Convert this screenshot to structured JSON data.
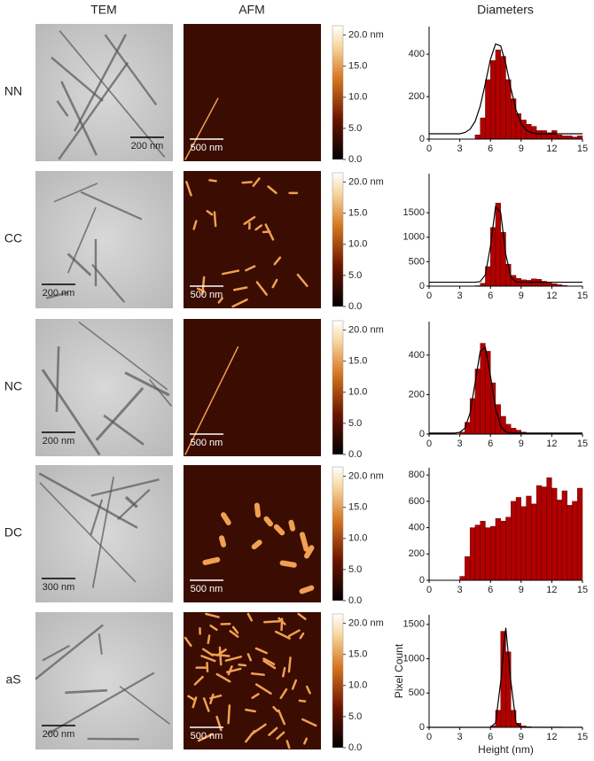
{
  "columns": [
    "TEM",
    "AFM",
    "Diameters"
  ],
  "rows": [
    {
      "label": "NN",
      "tem_scale": "200 nm",
      "afm_scale": "500 nm"
    },
    {
      "label": "CC",
      "tem_scale": "200 nm",
      "afm_scale": "500 nm"
    },
    {
      "label": "NC",
      "tem_scale": "200 nm",
      "afm_scale": "500 nm"
    },
    {
      "label": "DC",
      "tem_scale": "300 nm",
      "afm_scale": "500 nm"
    },
    {
      "label": "aS",
      "tem_scale": "200 nm",
      "afm_scale": "500 nm"
    }
  ],
  "colorbar": {
    "lim": [
      0,
      21.5
    ],
    "ticks": [
      {
        "value": 20,
        "label": "20.0 nm"
      },
      {
        "value": 15,
        "label": "15.0"
      },
      {
        "value": 10,
        "label": "10.0"
      },
      {
        "value": 5,
        "label": "5.0"
      },
      {
        "value": 0,
        "label": "0.0"
      }
    ]
  },
  "chart_data": [
    {
      "type": "histogram",
      "color": "#b00000",
      "bins": [
        0,
        0.5,
        1,
        1.5,
        2,
        2.5,
        3,
        3.5,
        4,
        4.5,
        5,
        5.5,
        6,
        6.5,
        7,
        7.5,
        8,
        8.5,
        9,
        9.5,
        10,
        10.5,
        11,
        11.5,
        12,
        12.5,
        13,
        13.5,
        14,
        14.5,
        15
      ],
      "counts": [
        0,
        0,
        0,
        0,
        0,
        0,
        0,
        0,
        0,
        20,
        100,
        280,
        370,
        420,
        390,
        280,
        190,
        120,
        90,
        70,
        60,
        40,
        40,
        30,
        40,
        20,
        15,
        15,
        10,
        15
      ],
      "fit": {
        "color": "#000000",
        "x": [
          0,
          0.5,
          1,
          1.5,
          2,
          2.5,
          3,
          3.5,
          4,
          4.5,
          5,
          5.5,
          6,
          6.5,
          7,
          7.5,
          8,
          8.5,
          9,
          9.5,
          10,
          10.5,
          11,
          11.5,
          12,
          12.5,
          13,
          13.5,
          14,
          14.5,
          15
        ],
        "values": [
          25,
          25,
          25,
          25,
          25,
          25,
          25,
          31,
          46,
          83,
          155,
          262,
          376,
          448,
          439,
          355,
          239,
          138,
          73,
          42,
          30,
          25,
          25,
          25,
          25,
          25,
          25,
          25,
          25,
          25,
          25
        ]
      },
      "xlim": [
        0,
        15
      ],
      "xticks": [
        0,
        3,
        6,
        9,
        12,
        15
      ],
      "ylim": [
        0,
        530
      ],
      "yticks": [
        0,
        200,
        400
      ]
    },
    {
      "type": "histogram",
      "color": "#b00000",
      "bins": [
        0,
        0.5,
        1,
        1.5,
        2,
        2.5,
        3,
        3.5,
        4,
        4.5,
        5,
        5.5,
        6,
        6.5,
        7,
        7.5,
        8,
        8.5,
        9,
        9.5,
        10,
        10.5,
        11,
        11.5,
        12,
        12.5,
        13,
        13.5,
        14,
        14.5,
        15
      ],
      "counts": [
        0,
        0,
        0,
        0,
        0,
        0,
        0,
        0,
        0,
        10,
        60,
        400,
        1200,
        1700,
        1100,
        450,
        220,
        160,
        130,
        120,
        150,
        140,
        100,
        80,
        50,
        30,
        15,
        0,
        0,
        0
      ],
      "fit": {
        "color": "#000000",
        "x": [
          0,
          0.5,
          1,
          1.5,
          2,
          2.5,
          3,
          3.5,
          4,
          4.5,
          5,
          5.5,
          6,
          6.5,
          7,
          7.5,
          8,
          8.5,
          9,
          9.5,
          10,
          10.5,
          11,
          11.5,
          12,
          12.5,
          13,
          13.5,
          14,
          14.5,
          15
        ],
        "values": [
          80,
          80,
          80,
          80,
          80,
          80,
          80,
          80,
          80,
          80,
          94,
          232,
          814,
          1624,
          1502,
          652,
          181,
          88,
          80,
          80,
          80,
          80,
          80,
          80,
          80,
          80,
          80,
          80,
          80,
          80,
          80
        ]
      },
      "xlim": [
        0,
        15
      ],
      "xticks": [
        0,
        3,
        6,
        9,
        12,
        15
      ],
      "ylim": [
        0,
        2300
      ],
      "yticks": [
        0,
        500,
        1000,
        1500
      ]
    },
    {
      "type": "histogram",
      "color": "#b00000",
      "bins": [
        0,
        0.5,
        1,
        1.5,
        2,
        2.5,
        3,
        3.5,
        4,
        4.5,
        5,
        5.5,
        6,
        6.5,
        7,
        7.5,
        8,
        8.5,
        9,
        9.5,
        10,
        10.5,
        11,
        11.5,
        12,
        12.5,
        13,
        13.5,
        14,
        14.5,
        15
      ],
      "counts": [
        0,
        0,
        0,
        0,
        0,
        0,
        10,
        60,
        180,
        330,
        460,
        420,
        260,
        150,
        90,
        50,
        30,
        20,
        10,
        5,
        0,
        0,
        0,
        0,
        0,
        0,
        0,
        0,
        0,
        0
      ],
      "fit": {
        "color": "#000000",
        "x": [
          0,
          0.5,
          1,
          1.5,
          2,
          2.5,
          3,
          3.5,
          4,
          4.5,
          5,
          5.5,
          6,
          6.5,
          7,
          7.5,
          8,
          8.5,
          9,
          9.5,
          10,
          10.5,
          11,
          11.5,
          12,
          12.5,
          13,
          13.5,
          14,
          14.5,
          15
        ],
        "values": [
          5,
          5,
          5,
          5,
          5,
          5,
          9,
          30,
          105,
          260,
          420,
          439,
          296,
          130,
          40,
          11,
          5,
          5,
          5,
          5,
          5,
          5,
          5,
          5,
          5,
          5,
          5,
          5,
          5,
          5,
          5
        ]
      },
      "xlim": [
        0,
        15
      ],
      "xticks": [
        0,
        3,
        6,
        9,
        12,
        15
      ],
      "ylim": [
        0,
        570
      ],
      "yticks": [
        0,
        200,
        400
      ]
    },
    {
      "type": "histogram",
      "color": "#b00000",
      "bins": [
        0,
        0.5,
        1,
        1.5,
        2,
        2.5,
        3,
        3.5,
        4,
        4.5,
        5,
        5.5,
        6,
        6.5,
        7,
        7.5,
        8,
        8.5,
        9,
        9.5,
        10,
        10.5,
        11,
        11.5,
        12,
        12.5,
        13,
        13.5,
        14,
        14.5,
        15
      ],
      "counts": [
        0,
        0,
        0,
        0,
        0,
        0,
        30,
        180,
        400,
        420,
        450,
        400,
        410,
        470,
        450,
        480,
        600,
        630,
        560,
        640,
        580,
        720,
        710,
        780,
        700,
        610,
        680,
        570,
        600,
        700
      ],
      "xlim": [
        0,
        15
      ],
      "xticks": [
        0,
        3,
        6,
        9,
        12,
        15
      ],
      "ylim": [
        0,
        855
      ],
      "yticks": [
        0,
        200,
        400,
        600,
        800
      ]
    },
    {
      "type": "histogram",
      "color": "#b00000",
      "bins": [
        0,
        0.5,
        1,
        1.5,
        2,
        2.5,
        3,
        3.5,
        4,
        4.5,
        5,
        5.5,
        6,
        6.5,
        7,
        7.5,
        8,
        8.5,
        9,
        9.5,
        10,
        10.5,
        11,
        11.5,
        12,
        12.5,
        13,
        13.5,
        14,
        14.5,
        15
      ],
      "counts": [
        0,
        0,
        0,
        0,
        0,
        0,
        0,
        0,
        0,
        0,
        0,
        0,
        20,
        250,
        1400,
        1100,
        250,
        60,
        20,
        10,
        5,
        5,
        5,
        5,
        5,
        5,
        0,
        0,
        0,
        0
      ],
      "fit": {
        "color": "#000000",
        "x": [
          0,
          0.5,
          1,
          1.5,
          2,
          2.5,
          3,
          3.5,
          4,
          4.5,
          5,
          5.5,
          6,
          6.5,
          7,
          7.5,
          8,
          8.5,
          9,
          9.5,
          10,
          10.5,
          11,
          11.5,
          12,
          12.5,
          13,
          13.5,
          14,
          14.5,
          15
        ],
        "values": [
          0,
          0,
          0,
          0,
          0,
          0,
          0,
          0,
          0,
          0,
          0,
          0,
          0,
          64,
          664,
          1450,
          664,
          64,
          0,
          0,
          0,
          0,
          0,
          0,
          0,
          0,
          0,
          0,
          0,
          0,
          0
        ]
      },
      "xlim": [
        0,
        15
      ],
      "xticks": [
        0,
        3,
        6,
        9,
        12,
        15
      ],
      "ylim": [
        0,
        1640
      ],
      "yticks": [
        0,
        500,
        1000,
        1500
      ],
      "xlabel": "Height (nm)",
      "ylabel": "Pixel Count"
    }
  ]
}
